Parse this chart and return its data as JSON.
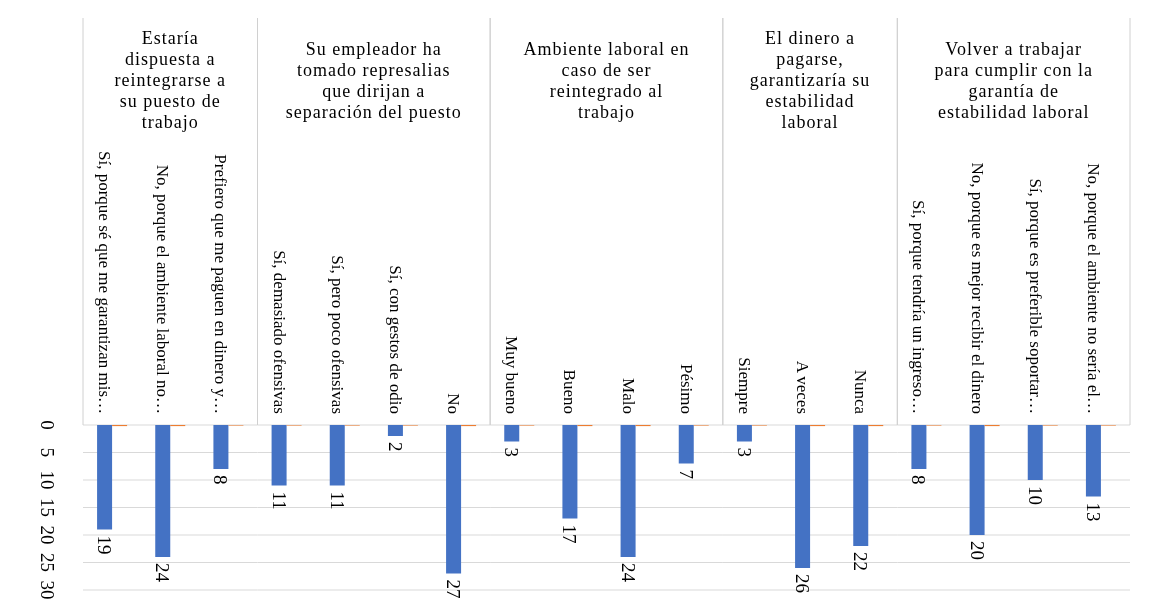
{
  "chart_data": [
    {
      "type": "bar",
      "title": "Estaría dispuesta a reintegrarse a su puesto de trabajo",
      "categories": [
        "Sí, porque sé que me garantizan mis…",
        "No, porque el ambiente laboral no…",
        "Prefiero que me paguen en dinero y…"
      ],
      "series": [
        {
          "color": "#4472c4",
          "values": [
            19,
            24,
            8
          ],
          "value_labels": [
            "19",
            "24",
            "8"
          ]
        },
        {
          "color": "#ed7d31",
          "values": [
            0.2,
            0.2,
            0.1
          ]
        }
      ],
      "ylim": [
        30,
        0
      ],
      "yticks": [
        0,
        5,
        10,
        15,
        20,
        25,
        30
      ],
      "grid": "y"
    },
    {
      "type": "bar",
      "title": "Su empleador ha tomado represalias que dirijan a separación del puesto",
      "categories": [
        "Sí, demasiado ofensivas",
        "Sí, pero poco ofensivas",
        "Sí, con gestos de odio",
        "No"
      ],
      "series": [
        {
          "color": "#4472c4",
          "values": [
            11,
            11,
            2,
            27
          ],
          "value_labels": [
            "11",
            "11",
            "2",
            "27"
          ]
        },
        {
          "color": "#ed7d31",
          "values": [
            0.1,
            0.1,
            0.1,
            0.2
          ]
        }
      ],
      "ylim": [
        30,
        0
      ],
      "yticks": [
        0,
        5,
        10,
        15,
        20,
        25,
        30
      ],
      "grid": "y",
      "tick_labels": "x"
    },
    {
      "type": "bar",
      "title": "Ambiente laboral en caso de ser reintegrado al trabajo",
      "categories": [
        "Muy bueno",
        "Bueno",
        "Malo",
        "Pésimo"
      ],
      "series": [
        {
          "color": "#4472c4",
          "values": [
            3,
            17,
            24,
            7
          ],
          "value_labels": [
            "3",
            "17",
            "24",
            "7"
          ]
        },
        {
          "color": "#ed7d31",
          "values": [
            0.1,
            0.2,
            0.2,
            0.1
          ]
        }
      ],
      "ylim": [
        30,
        0
      ],
      "yticks": [
        0,
        5,
        10,
        15,
        20,
        25,
        30
      ],
      "grid": "y",
      "tick_labels": "x"
    },
    {
      "type": "bar",
      "title": "El dinero a pagarse, garantizaría su estabilidad laboral",
      "categories": [
        "Siempre",
        "A veces",
        "Nunca"
      ],
      "series": [
        {
          "color": "#4472c4",
          "values": [
            3,
            26,
            22
          ],
          "value_labels": [
            "3",
            "26",
            "22"
          ]
        },
        {
          "color": "#ed7d31",
          "values": [
            0.1,
            0.2,
            0.2
          ]
        }
      ],
      "ylim": [
        30,
        0
      ],
      "yticks": [
        0,
        5,
        10,
        15,
        20,
        25,
        30
      ],
      "grid": "y",
      "tick_labels": "x"
    },
    {
      "type": "bar",
      "title": "Volver a trabajar para cumplir con la garantía de estabilidad laboral",
      "categories": [
        "Sí, porque tendría un ingreso…",
        "No, porque es mejor recibir el dinero",
        "Sí, porque es preferible soportar…",
        "No, porque el ambiente no sería el…"
      ],
      "series": [
        {
          "color": "#4472c4",
          "values": [
            8,
            20,
            10,
            13
          ],
          "value_labels": [
            "8",
            "20",
            "10",
            "13"
          ]
        },
        {
          "color": "#ed7d31",
          "values": [
            0.1,
            0.2,
            0.1,
            0.1
          ]
        }
      ],
      "ylim": [
        30,
        0
      ],
      "yticks": [
        0,
        5,
        10,
        15,
        20,
        25,
        30
      ],
      "grid": "y",
      "tick_labels": "x"
    }
  ]
}
